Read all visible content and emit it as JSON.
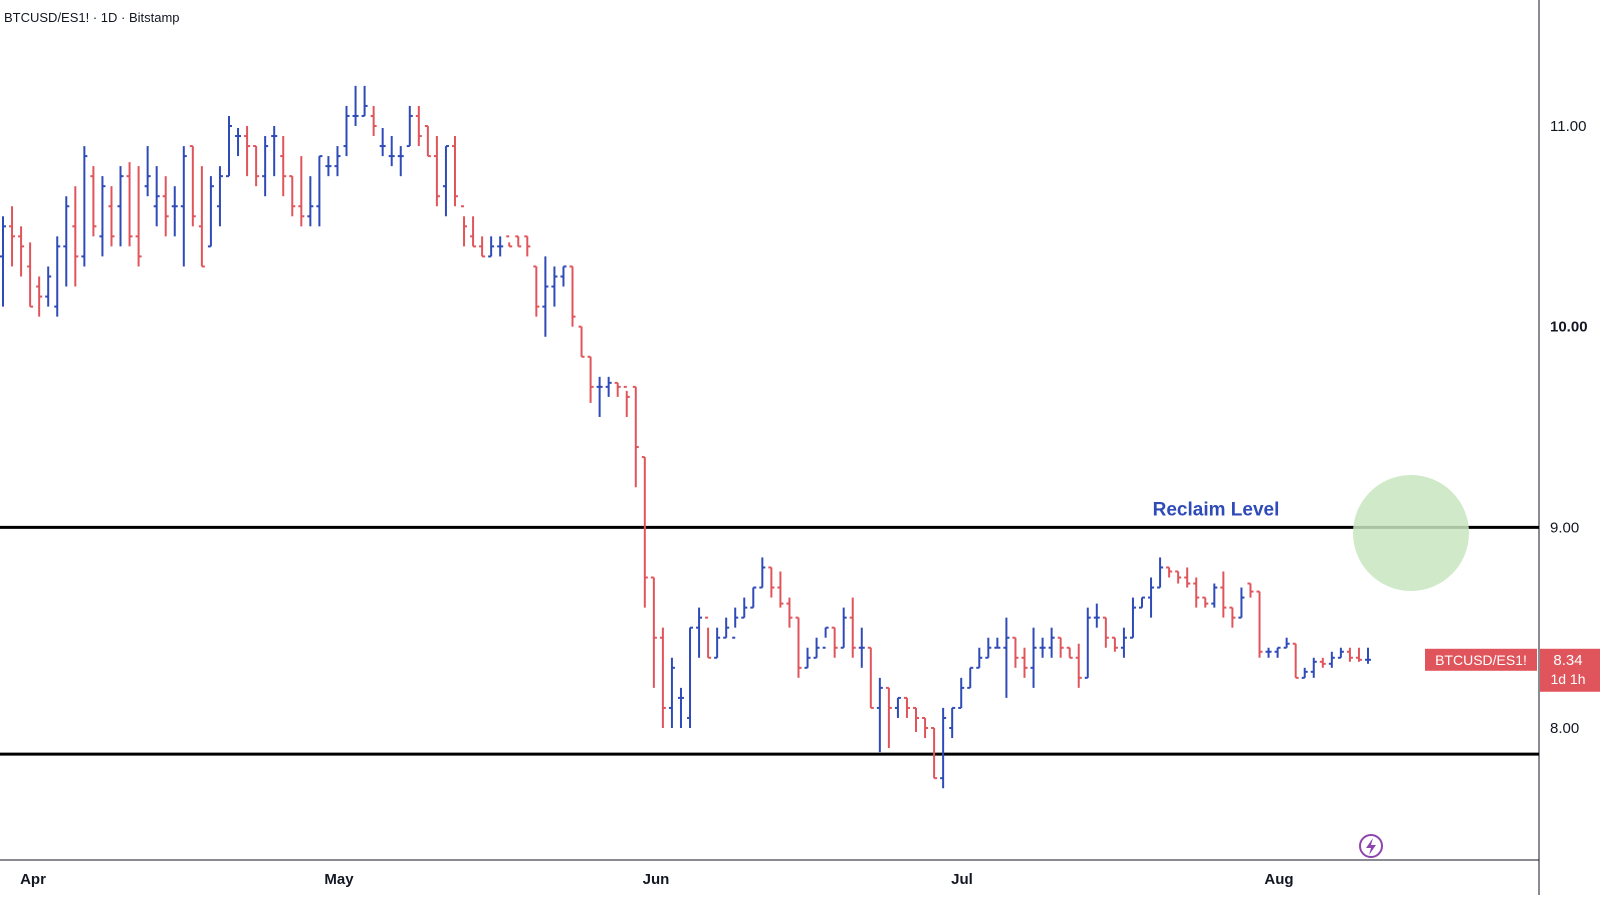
{
  "header": {
    "title": "BTCUSD/ES1! · 1D · Bitstamp"
  },
  "colors": {
    "up": "#2f4bb8",
    "down": "#e0555b",
    "line": "#000000",
    "annotation": "#2f4bb8",
    "circle": "#c8e6c0",
    "badge": "#e0555b",
    "axis_text": "#131722"
  },
  "chart_data": {
    "type": "bar",
    "subtype": "ohlc",
    "title": "BTCUSD/ES1! · 1D · Bitstamp",
    "xlabel": "",
    "ylabel": "",
    "ylim": [
      7.35,
      11.6
    ],
    "x_ticks": [
      "Apr",
      "May",
      "Jun",
      "Jul",
      "Aug"
    ],
    "y_ticks": [
      "11.00",
      "10.00",
      "9.00",
      "8.00"
    ],
    "grid": false,
    "bars": [
      [
        10.35,
        10.55,
        10.1,
        10.5
      ],
      [
        10.5,
        10.6,
        10.3,
        10.45
      ],
      [
        10.45,
        10.5,
        10.25,
        10.4
      ],
      [
        10.3,
        10.42,
        10.1,
        10.1
      ],
      [
        10.2,
        10.25,
        10.05,
        10.15
      ],
      [
        10.15,
        10.3,
        10.1,
        10.25
      ],
      [
        10.1,
        10.45,
        10.05,
        10.4
      ],
      [
        10.4,
        10.65,
        10.2,
        10.6
      ],
      [
        10.5,
        10.7,
        10.2,
        10.35
      ],
      [
        10.35,
        10.9,
        10.3,
        10.85
      ],
      [
        10.75,
        10.8,
        10.45,
        10.5
      ],
      [
        10.45,
        10.75,
        10.35,
        10.7
      ],
      [
        10.6,
        10.7,
        10.4,
        10.45
      ],
      [
        10.6,
        10.8,
        10.4,
        10.75
      ],
      [
        10.75,
        10.82,
        10.4,
        10.45
      ],
      [
        10.45,
        10.8,
        10.3,
        10.35
      ],
      [
        10.7,
        10.9,
        10.65,
        10.75
      ],
      [
        10.6,
        10.8,
        10.5,
        10.65
      ],
      [
        10.65,
        10.75,
        10.45,
        10.55
      ],
      [
        10.6,
        10.7,
        10.45,
        10.6
      ],
      [
        10.6,
        10.9,
        10.3,
        10.85
      ],
      [
        10.9,
        10.9,
        10.5,
        10.55
      ],
      [
        10.5,
        10.8,
        10.3,
        10.3
      ],
      [
        10.4,
        10.75,
        10.4,
        10.7
      ],
      [
        10.6,
        10.8,
        10.5,
        10.75
      ],
      [
        10.75,
        11.05,
        10.75,
        11.0
      ],
      [
        10.95,
        10.99,
        10.85,
        10.95
      ],
      [
        10.95,
        11.0,
        10.75,
        10.9
      ],
      [
        10.9,
        10.9,
        10.7,
        10.75
      ],
      [
        10.75,
        10.95,
        10.65,
        10.9
      ],
      [
        10.95,
        11.0,
        10.75,
        10.95
      ],
      [
        10.85,
        10.95,
        10.65,
        10.75
      ],
      [
        10.75,
        10.75,
        10.55,
        10.6
      ],
      [
        10.6,
        10.85,
        10.5,
        10.55
      ],
      [
        10.55,
        10.75,
        10.5,
        10.6
      ],
      [
        10.6,
        10.85,
        10.5,
        10.85
      ],
      [
        10.8,
        10.85,
        10.75,
        10.8
      ],
      [
        10.8,
        10.9,
        10.75,
        10.85
      ],
      [
        10.9,
        11.1,
        10.85,
        11.05
      ],
      [
        11.05,
        11.2,
        11.0,
        11.05
      ],
      [
        11.05,
        11.2,
        11.05,
        11.1
      ],
      [
        11.05,
        11.1,
        10.95,
        11.0
      ],
      [
        10.9,
        10.99,
        10.85,
        10.9
      ],
      [
        10.85,
        10.95,
        10.8,
        10.85
      ],
      [
        10.85,
        10.9,
        10.75,
        10.85
      ],
      [
        10.9,
        11.1,
        10.9,
        11.05
      ],
      [
        11.05,
        11.1,
        10.9,
        10.95
      ],
      [
        11.0,
        11.0,
        10.85,
        10.85
      ],
      [
        10.85,
        10.95,
        10.6,
        10.65
      ],
      [
        10.7,
        10.9,
        10.55,
        10.9
      ],
      [
        10.9,
        10.95,
        10.6,
        10.65
      ],
      [
        10.6,
        10.55,
        10.4,
        10.5
      ],
      [
        10.45,
        10.55,
        10.4,
        10.4
      ],
      [
        10.4,
        10.45,
        10.35,
        10.35
      ],
      [
        10.35,
        10.45,
        10.35,
        10.4
      ],
      [
        10.4,
        10.45,
        10.35,
        10.4
      ],
      [
        10.45,
        10.42,
        10.4,
        10.4
      ],
      [
        10.45,
        10.45,
        10.4,
        10.4
      ],
      [
        10.45,
        10.45,
        10.35,
        10.4
      ],
      [
        10.3,
        10.3,
        10.05,
        10.1
      ],
      [
        10.1,
        10.35,
        9.95,
        10.2
      ],
      [
        10.2,
        10.3,
        10.1,
        10.25
      ],
      [
        10.25,
        10.3,
        10.2,
        10.3
      ],
      [
        10.3,
        10.3,
        10.0,
        10.05
      ],
      [
        10.0,
        10.0,
        9.85,
        9.85
      ],
      [
        9.85,
        9.85,
        9.62,
        9.7
      ],
      [
        9.7,
        9.75,
        9.55,
        9.7
      ],
      [
        9.7,
        9.75,
        9.65,
        9.72
      ],
      [
        9.72,
        9.72,
        9.65,
        9.7
      ],
      [
        9.7,
        9.68,
        9.55,
        9.65
      ],
      [
        9.7,
        9.7,
        9.2,
        9.4
      ],
      [
        9.35,
        9.35,
        8.6,
        8.75
      ],
      [
        8.75,
        8.75,
        8.2,
        8.45
      ],
      [
        8.45,
        8.5,
        8.0,
        8.1
      ],
      [
        8.1,
        8.35,
        8.0,
        8.3
      ],
      [
        8.15,
        8.2,
        8.0,
        8.15
      ],
      [
        8.05,
        8.5,
        8.0,
        8.5
      ],
      [
        8.5,
        8.6,
        8.35,
        8.55
      ],
      [
        8.55,
        8.5,
        8.35,
        8.35
      ],
      [
        8.35,
        8.5,
        8.35,
        8.45
      ],
      [
        8.45,
        8.55,
        8.45,
        8.5
      ],
      [
        8.45,
        8.6,
        8.5,
        8.55
      ],
      [
        8.55,
        8.65,
        8.55,
        8.6
      ],
      [
        8.6,
        8.7,
        8.6,
        8.7
      ],
      [
        8.7,
        8.85,
        8.7,
        8.8
      ],
      [
        8.8,
        8.8,
        8.65,
        8.7
      ],
      [
        8.7,
        8.78,
        8.6,
        8.62
      ],
      [
        8.62,
        8.65,
        8.5,
        8.55
      ],
      [
        8.55,
        8.55,
        8.25,
        8.3
      ],
      [
        8.3,
        8.4,
        8.3,
        8.35
      ],
      [
        8.35,
        8.45,
        8.35,
        8.4
      ],
      [
        8.4,
        8.5,
        8.45,
        8.5
      ],
      [
        8.5,
        8.5,
        8.35,
        8.4
      ],
      [
        8.4,
        8.6,
        8.4,
        8.55
      ],
      [
        8.55,
        8.65,
        8.35,
        8.4
      ],
      [
        8.4,
        8.5,
        8.3,
        8.4
      ],
      [
        8.4,
        8.4,
        8.1,
        8.1
      ],
      [
        8.1,
        8.25,
        7.88,
        8.2
      ],
      [
        8.2,
        8.2,
        7.9,
        8.1
      ],
      [
        8.1,
        8.15,
        8.05,
        8.15
      ],
      [
        8.15,
        8.15,
        8.05,
        8.1
      ],
      [
        8.1,
        8.1,
        7.98,
        8.05
      ],
      [
        8.05,
        8.05,
        7.95,
        8.0
      ],
      [
        8.0,
        8.0,
        7.75,
        7.75
      ],
      [
        7.75,
        8.1,
        7.7,
        8.05
      ],
      [
        8.0,
        8.1,
        7.95,
        8.1
      ],
      [
        8.1,
        8.25,
        8.1,
        8.2
      ],
      [
        8.2,
        8.3,
        8.2,
        8.3
      ],
      [
        8.3,
        8.4,
        8.3,
        8.35
      ],
      [
        8.35,
        8.45,
        8.35,
        8.4
      ],
      [
        8.4,
        8.45,
        8.4,
        8.4
      ],
      [
        8.4,
        8.55,
        8.15,
        8.45
      ],
      [
        8.45,
        8.45,
        8.3,
        8.35
      ],
      [
        8.35,
        8.4,
        8.25,
        8.3
      ],
      [
        8.3,
        8.5,
        8.2,
        8.4
      ],
      [
        8.4,
        8.45,
        8.35,
        8.4
      ],
      [
        8.4,
        8.5,
        8.35,
        8.45
      ],
      [
        8.45,
        8.45,
        8.35,
        8.4
      ],
      [
        8.4,
        8.4,
        8.35,
        8.35
      ],
      [
        8.35,
        8.42,
        8.2,
        8.25
      ],
      [
        8.25,
        8.6,
        8.25,
        8.55
      ],
      [
        8.55,
        8.62,
        8.5,
        8.55
      ],
      [
        8.55,
        8.55,
        8.4,
        8.45
      ],
      [
        8.45,
        8.45,
        8.38,
        8.4
      ],
      [
        8.4,
        8.5,
        8.35,
        8.45
      ],
      [
        8.45,
        8.65,
        8.45,
        8.6
      ],
      [
        8.6,
        8.65,
        8.6,
        8.65
      ],
      [
        8.65,
        8.75,
        8.55,
        8.7
      ],
      [
        8.7,
        8.85,
        8.7,
        8.8
      ],
      [
        8.8,
        8.8,
        8.75,
        8.78
      ],
      [
        8.78,
        8.78,
        8.72,
        8.75
      ],
      [
        8.75,
        8.8,
        8.7,
        8.72
      ],
      [
        8.72,
        8.75,
        8.6,
        8.65
      ],
      [
        8.65,
        8.65,
        8.6,
        8.62
      ],
      [
        8.62,
        8.72,
        8.6,
        8.7
      ],
      [
        8.7,
        8.78,
        8.55,
        8.6
      ],
      [
        8.6,
        8.6,
        8.5,
        8.55
      ],
      [
        8.55,
        8.7,
        8.55,
        8.65
      ],
      [
        8.72,
        8.72,
        8.65,
        8.68
      ],
      [
        8.68,
        8.68,
        8.35,
        8.38
      ],
      [
        8.38,
        8.4,
        8.35,
        8.38
      ],
      [
        8.38,
        8.4,
        8.35,
        8.4
      ],
      [
        8.4,
        8.45,
        8.4,
        8.42
      ],
      [
        8.42,
        8.42,
        8.25,
        8.25
      ],
      [
        8.25,
        8.3,
        8.25,
        8.28
      ],
      [
        8.28,
        8.35,
        8.25,
        8.33
      ],
      [
        8.33,
        8.35,
        8.3,
        8.32
      ],
      [
        8.32,
        8.38,
        8.3,
        8.35
      ],
      [
        8.35,
        8.4,
        8.35,
        8.38
      ],
      [
        8.38,
        8.4,
        8.33,
        8.35
      ],
      [
        8.35,
        8.4,
        8.33,
        8.34
      ],
      [
        8.34,
        8.4,
        8.32,
        8.34
      ]
    ],
    "lines": [
      {
        "name": "Reclaim Level",
        "y": 9.0
      },
      {
        "name": "",
        "y": 7.87
      }
    ],
    "annotation": {
      "text": "Reclaim Level"
    },
    "last_price": {
      "symbol": "BTCUSD/ES1!",
      "value": "8.34",
      "countdown": "1d 1h",
      "y": 8.34
    }
  }
}
